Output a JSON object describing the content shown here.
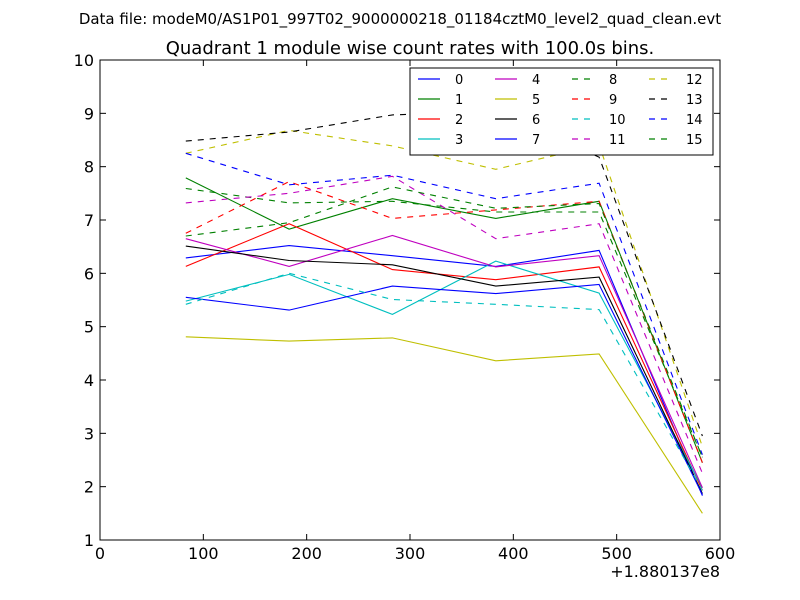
{
  "chart_data": {
    "type": "line",
    "suptitle": "Data file: modeM0/AS1P01_997T02_9000000218_01184cztM0_level2_quad_clean.evt",
    "title": "Quadrant 1 module wise count rates with 100.0s bins.",
    "xlabel": "",
    "ylabel": "",
    "x_offset_label": "+1.880137e8",
    "xlim": [
      0,
      600
    ],
    "ylim": [
      1,
      10
    ],
    "xticks": [
      0,
      100,
      200,
      300,
      400,
      500,
      600
    ],
    "yticks": [
      1,
      2,
      3,
      4,
      5,
      6,
      7,
      8,
      9,
      10
    ],
    "grid": false,
    "legend_position": "top-right",
    "x": [
      83,
      183,
      283,
      383,
      483,
      583
    ],
    "series": [
      {
        "name": "0",
        "color": "#0000ff",
        "dash": "solid",
        "values": [
          6.29,
          6.52,
          6.33,
          6.13,
          6.43,
          1.83
        ]
      },
      {
        "name": "1",
        "color": "#008000",
        "dash": "solid",
        "values": [
          7.79,
          6.83,
          7.4,
          7.03,
          7.35,
          2.45
        ]
      },
      {
        "name": "2",
        "color": "#ff0000",
        "dash": "solid",
        "values": [
          6.13,
          6.93,
          6.07,
          5.88,
          6.12,
          1.93
        ]
      },
      {
        "name": "3",
        "color": "#00bfbf",
        "dash": "solid",
        "values": [
          5.48,
          5.98,
          5.23,
          6.23,
          5.63,
          1.98
        ]
      },
      {
        "name": "4",
        "color": "#bf00bf",
        "dash": "solid",
        "values": [
          6.65,
          6.13,
          6.71,
          6.12,
          6.33,
          1.98
        ]
      },
      {
        "name": "5",
        "color": "#bfbf00",
        "dash": "solid",
        "values": [
          4.81,
          4.73,
          4.79,
          4.36,
          4.49,
          1.5
        ]
      },
      {
        "name": "6",
        "color": "#000000",
        "dash": "solid",
        "values": [
          6.51,
          6.24,
          6.16,
          5.76,
          5.93,
          1.87
        ]
      },
      {
        "name": "7",
        "color": "#0000ff",
        "dash": "solid",
        "values": [
          5.55,
          5.31,
          5.76,
          5.62,
          5.79,
          1.85
        ]
      },
      {
        "name": "8",
        "color": "#008000",
        "dash": "dashed",
        "values": [
          7.59,
          7.32,
          7.35,
          7.15,
          7.15,
          2.55
        ]
      },
      {
        "name": "9",
        "color": "#ff0000",
        "dash": "dashed",
        "values": [
          6.75,
          7.72,
          7.03,
          7.19,
          7.35,
          2.45
        ]
      },
      {
        "name": "10",
        "color": "#00bfbf",
        "dash": "dashed",
        "values": [
          5.42,
          6.0,
          5.51,
          5.42,
          5.32,
          1.93
        ]
      },
      {
        "name": "11",
        "color": "#bf00bf",
        "dash": "dashed",
        "values": [
          7.32,
          7.5,
          7.82,
          6.65,
          6.93,
          2.25
        ]
      },
      {
        "name": "12",
        "color": "#bfbf00",
        "dash": "dashed",
        "values": [
          8.25,
          8.68,
          8.39,
          7.95,
          8.41,
          2.75
        ]
      },
      {
        "name": "13",
        "color": "#000000",
        "dash": "dashed",
        "values": [
          8.48,
          8.65,
          8.97,
          9.03,
          8.18,
          2.95
        ]
      },
      {
        "name": "14",
        "color": "#0000ff",
        "dash": "dashed",
        "values": [
          8.25,
          7.66,
          7.84,
          7.4,
          7.69,
          2.6
        ]
      },
      {
        "name": "15",
        "color": "#008000",
        "dash": "dashed",
        "values": [
          6.7,
          6.95,
          7.62,
          7.22,
          7.31,
          2.55
        ]
      }
    ]
  }
}
